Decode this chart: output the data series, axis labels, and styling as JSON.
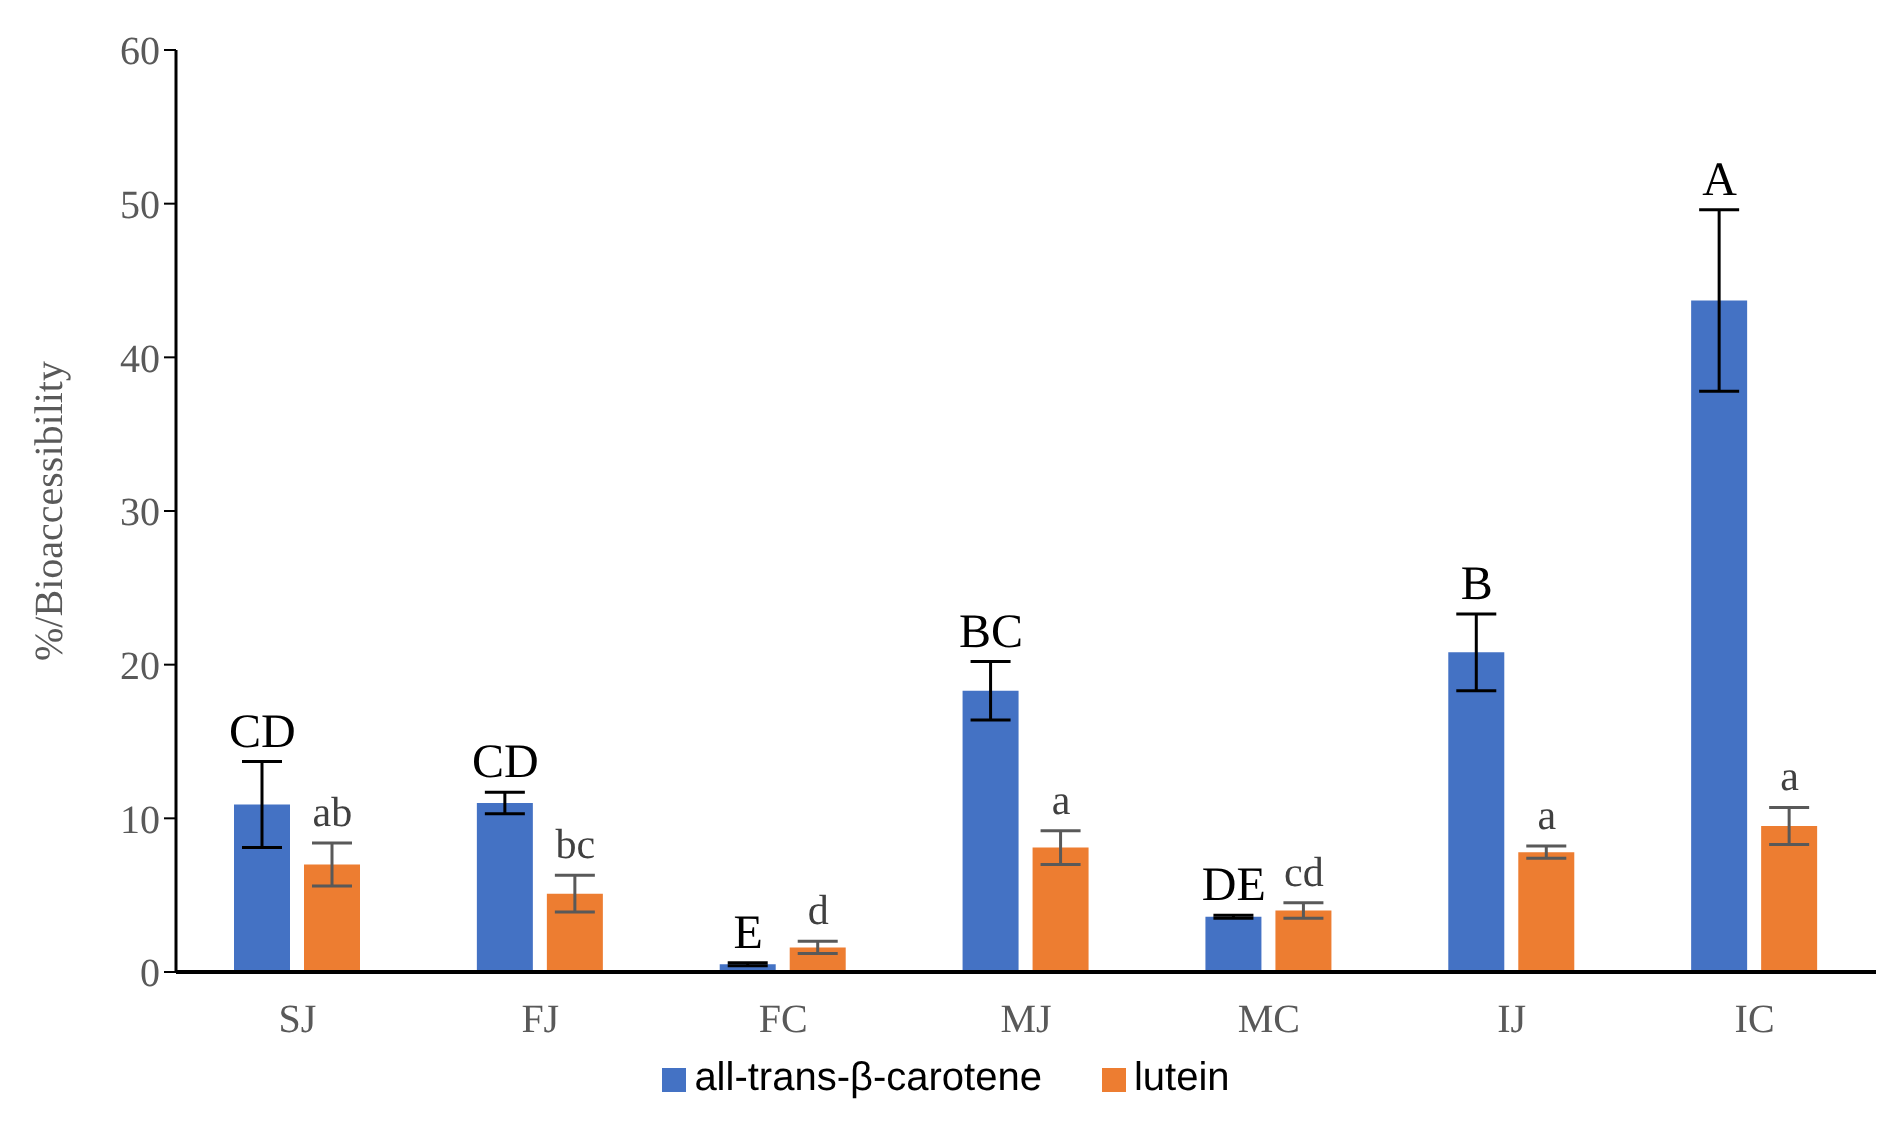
{
  "chart_data": {
    "type": "bar",
    "ylabel": "%/Bioaccessibility",
    "categories": [
      "SJ",
      "FJ",
      "FC",
      "MJ",
      "MC",
      "IJ",
      "IC"
    ],
    "series": [
      {
        "name": "all-trans-β-carotene",
        "color": "#4472c4",
        "values": [
          10.9,
          11.0,
          0.5,
          18.3,
          3.6,
          20.8,
          43.7
        ],
        "errors": [
          2.8,
          0.7,
          0.1,
          1.9,
          0.1,
          2.5,
          5.9
        ]
      },
      {
        "name": "lutein",
        "color": "#ed7d31",
        "values": [
          7.0,
          5.1,
          1.6,
          8.1,
          4.0,
          7.8,
          9.5
        ],
        "errors": [
          1.4,
          1.2,
          0.4,
          1.1,
          0.5,
          0.4,
          1.2
        ]
      }
    ],
    "ylim": [
      0,
      60
    ],
    "yticks": [
      0,
      10,
      20,
      30,
      40,
      50,
      60
    ],
    "legend": "bottom",
    "annotations": [
      "CD",
      "ab",
      "CD",
      "bc",
      "E",
      "d",
      "BC",
      "a",
      "DE",
      "cd",
      "B",
      "a",
      "A",
      "a"
    ]
  }
}
